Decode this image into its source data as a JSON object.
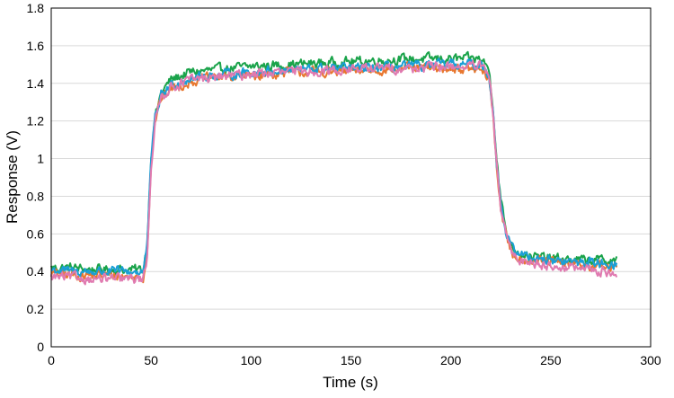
{
  "chart_data": {
    "type": "line",
    "title": "",
    "xlabel": "Time (s)",
    "ylabel": "Response (V)",
    "xlim": [
      0,
      300
    ],
    "ylim": [
      0,
      1.8
    ],
    "x_ticks": [
      "0",
      "50",
      "100",
      "150",
      "200",
      "250",
      "300"
    ],
    "y_ticks": [
      "0",
      "0.2",
      "0.4",
      "0.6",
      "0.8",
      "1",
      "1.2",
      "1.4",
      "1.6",
      "1.8"
    ],
    "grid": "horizontal",
    "legend": "none",
    "series": [
      {
        "color": "#1aa34a",
        "x": [
          0,
          10,
          20,
          30,
          40,
          46,
          48,
          50,
          52,
          55,
          60,
          70,
          80,
          100,
          120,
          140,
          160,
          180,
          200,
          215,
          219,
          221,
          223,
          225,
          228,
          231,
          235,
          240,
          250,
          260,
          270,
          283
        ],
        "y": [
          0.42,
          0.42,
          0.41,
          0.41,
          0.41,
          0.41,
          0.55,
          1.02,
          1.22,
          1.35,
          1.42,
          1.46,
          1.47,
          1.49,
          1.5,
          1.51,
          1.52,
          1.53,
          1.53,
          1.53,
          1.48,
          1.3,
          1.0,
          0.78,
          0.6,
          0.53,
          0.5,
          0.48,
          0.47,
          0.46,
          0.46,
          0.46
        ]
      },
      {
        "color": "#e8772e",
        "x": [
          0,
          10,
          20,
          30,
          40,
          46,
          48,
          50,
          52,
          55,
          60,
          70,
          80,
          100,
          120,
          140,
          160,
          180,
          200,
          215,
          219,
          221,
          223,
          225,
          228,
          231,
          235,
          240,
          250,
          260,
          270,
          283
        ],
        "y": [
          0.39,
          0.38,
          0.38,
          0.38,
          0.37,
          0.37,
          0.5,
          0.98,
          1.2,
          1.32,
          1.37,
          1.41,
          1.43,
          1.44,
          1.46,
          1.46,
          1.47,
          1.48,
          1.48,
          1.47,
          1.42,
          1.25,
          0.95,
          0.74,
          0.57,
          0.49,
          0.47,
          0.46,
          0.45,
          0.44,
          0.43,
          0.42
        ]
      },
      {
        "color": "#1a9fd6",
        "x": [
          0,
          10,
          20,
          30,
          40,
          46,
          48,
          50,
          52,
          55,
          60,
          70,
          80,
          100,
          120,
          140,
          160,
          180,
          200,
          215,
          219,
          221,
          223,
          225,
          228,
          231,
          235,
          240,
          250,
          260,
          270,
          283
        ],
        "y": [
          0.41,
          0.4,
          0.4,
          0.4,
          0.4,
          0.4,
          0.54,
          1.0,
          1.21,
          1.34,
          1.39,
          1.43,
          1.44,
          1.46,
          1.47,
          1.48,
          1.48,
          1.49,
          1.5,
          1.5,
          1.45,
          1.28,
          0.98,
          0.76,
          0.59,
          0.52,
          0.49,
          0.48,
          0.46,
          0.45,
          0.45,
          0.44
        ]
      },
      {
        "color": "#e07ab0",
        "x": [
          0,
          10,
          20,
          30,
          40,
          46,
          48,
          50,
          52,
          55,
          60,
          70,
          80,
          100,
          120,
          140,
          160,
          180,
          200,
          215,
          219,
          221,
          223,
          225,
          228,
          231,
          235,
          240,
          250,
          260,
          270,
          283
        ],
        "y": [
          0.37,
          0.37,
          0.36,
          0.36,
          0.36,
          0.36,
          0.48,
          0.96,
          1.19,
          1.33,
          1.38,
          1.42,
          1.43,
          1.45,
          1.46,
          1.47,
          1.48,
          1.48,
          1.49,
          1.49,
          1.44,
          1.26,
          0.96,
          0.74,
          0.57,
          0.49,
          0.46,
          0.45,
          0.43,
          0.42,
          0.41,
          0.39
        ]
      }
    ]
  }
}
